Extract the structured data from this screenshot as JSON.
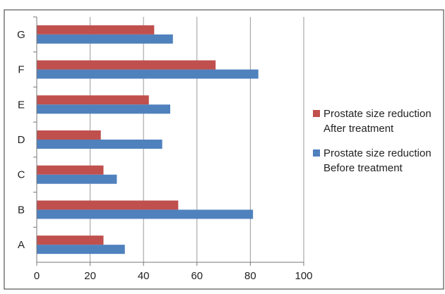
{
  "chart_data": {
    "type": "bar",
    "orientation": "horizontal",
    "categories": [
      "A",
      "B",
      "C",
      "D",
      "E",
      "F",
      "G"
    ],
    "series": [
      {
        "name_lines": [
          "Prostate size reduction",
          "After treatment"
        ],
        "color": "#c0504d",
        "values": [
          25,
          53,
          25,
          24,
          42,
          67,
          44
        ]
      },
      {
        "name_lines": [
          "Prostate size reduction",
          "Before treatment"
        ],
        "color": "#4f81bd",
        "values": [
          33,
          81,
          30,
          47,
          50,
          83,
          51
        ]
      }
    ],
    "xlim": [
      0,
      100
    ],
    "xticks": [
      0,
      20,
      40,
      60,
      80,
      100
    ],
    "grid": true,
    "legend_position": "right"
  }
}
